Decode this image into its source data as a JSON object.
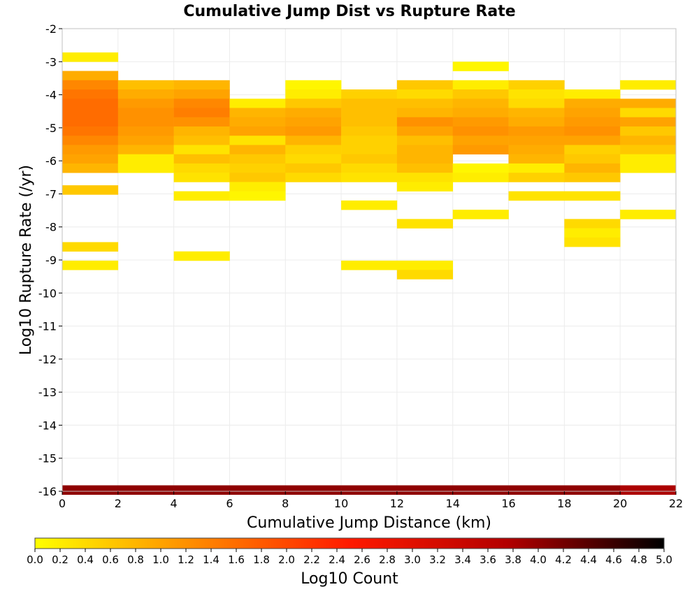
{
  "chart_data": {
    "type": "heatmap",
    "title": "Cumulative Jump Dist vs Rupture Rate",
    "xlabel": "Cumulative Jump Distance (km)",
    "ylabel": "Log10 Rupture Rate (/yr)",
    "xlim": [
      0,
      22
    ],
    "ylim": [
      -16,
      -2
    ],
    "x_ticks": [
      0,
      2,
      4,
      6,
      8,
      10,
      12,
      14,
      16,
      18,
      20,
      22
    ],
    "y_ticks": [
      -2,
      -3,
      -4,
      -5,
      -6,
      -7,
      -8,
      -9,
      -10,
      -11,
      -12,
      -13,
      -14,
      -15,
      -16
    ],
    "x_bin_width": 2,
    "y_bin_height": 0.28,
    "grid": true,
    "colorscale": {
      "label": "Log10 Count",
      "min": 0.0,
      "max": 5.0,
      "ticks": [
        "0.0",
        "0.2",
        "0.4",
        "0.6",
        "0.8",
        "1.0",
        "1.2",
        "1.4",
        "1.6",
        "1.8",
        "2.0",
        "2.2",
        "2.4",
        "2.6",
        "2.8",
        "3.0",
        "3.2",
        "3.4",
        "3.6",
        "3.8",
        "4.0",
        "4.2",
        "4.4",
        "4.6",
        "4.8",
        "5.0"
      ],
      "colors": [
        "#ffff00",
        "#ff8c00",
        "#ff1a00",
        "#b30000",
        "#000000"
      ]
    },
    "cells": [
      [
        1,
        -2.86,
        0.2
      ],
      [
        1,
        -3.42,
        0.9
      ],
      [
        1,
        -3.7,
        1.3
      ],
      [
        1,
        -3.98,
        1.5
      ],
      [
        1,
        -4.26,
        1.6
      ],
      [
        1,
        -4.54,
        1.6
      ],
      [
        1,
        -4.82,
        1.6
      ],
      [
        1,
        -5.1,
        1.5
      ],
      [
        1,
        -5.38,
        1.3
      ],
      [
        1,
        -5.66,
        1.1
      ],
      [
        1,
        -5.94,
        1.0
      ],
      [
        1,
        -6.22,
        0.8
      ],
      [
        1,
        -6.88,
        0.6
      ],
      [
        1,
        -8.6,
        0.4
      ],
      [
        1,
        -9.16,
        0.2
      ],
      [
        1,
        -15.96,
        4.0
      ],
      [
        3,
        -3.7,
        0.7
      ],
      [
        3,
        -3.98,
        0.9
      ],
      [
        3,
        -4.26,
        1.1
      ],
      [
        3,
        -4.54,
        1.2
      ],
      [
        3,
        -4.82,
        1.2
      ],
      [
        3,
        -5.1,
        1.1
      ],
      [
        3,
        -5.38,
        1.0
      ],
      [
        3,
        -5.66,
        0.8
      ],
      [
        3,
        -5.94,
        0.2
      ],
      [
        3,
        -6.22,
        0.2
      ],
      [
        3,
        -15.96,
        4.0
      ],
      [
        5,
        -3.7,
        0.8
      ],
      [
        5,
        -3.98,
        1.0
      ],
      [
        5,
        -4.26,
        1.3
      ],
      [
        5,
        -4.54,
        1.4
      ],
      [
        5,
        -4.82,
        1.2
      ],
      [
        5,
        -5.1,
        0.8
      ],
      [
        5,
        -5.38,
        0.7
      ],
      [
        5,
        -5.66,
        0.3
      ],
      [
        5,
        -5.94,
        0.7
      ],
      [
        5,
        -6.22,
        0.4
      ],
      [
        5,
        -6.5,
        0.3
      ],
      [
        5,
        -7.06,
        0.2
      ],
      [
        5,
        -8.88,
        0.2
      ],
      [
        5,
        -15.96,
        4.0
      ],
      [
        7,
        -4.26,
        0.2
      ],
      [
        7,
        -4.54,
        0.8
      ],
      [
        7,
        -4.82,
        0.9
      ],
      [
        7,
        -5.1,
        1.0
      ],
      [
        7,
        -5.38,
        0.3
      ],
      [
        7,
        -5.66,
        0.8
      ],
      [
        7,
        -5.94,
        0.6
      ],
      [
        7,
        -6.22,
        0.5
      ],
      [
        7,
        -6.5,
        0.6
      ],
      [
        7,
        -6.78,
        0.2
      ],
      [
        7,
        -7.06,
        0.1
      ],
      [
        7,
        -15.96,
        4.0
      ],
      [
        9,
        -3.7,
        0.1
      ],
      [
        9,
        -3.98,
        0.2
      ],
      [
        9,
        -4.26,
        0.6
      ],
      [
        9,
        -4.54,
        0.9
      ],
      [
        9,
        -4.82,
        1.0
      ],
      [
        9,
        -5.1,
        1.1
      ],
      [
        9,
        -5.38,
        0.8
      ],
      [
        9,
        -5.66,
        0.5
      ],
      [
        9,
        -5.94,
        0.4
      ],
      [
        9,
        -6.22,
        0.6
      ],
      [
        9,
        -6.5,
        0.4
      ],
      [
        9,
        -15.96,
        4.0
      ],
      [
        11,
        -3.98,
        0.5
      ],
      [
        11,
        -4.26,
        0.7
      ],
      [
        11,
        -4.54,
        0.7
      ],
      [
        11,
        -4.82,
        0.7
      ],
      [
        11,
        -5.1,
        0.6
      ],
      [
        11,
        -5.38,
        0.5
      ],
      [
        11,
        -5.66,
        0.5
      ],
      [
        11,
        -5.94,
        0.6
      ],
      [
        11,
        -6.22,
        0.4
      ],
      [
        11,
        -6.5,
        0.3
      ],
      [
        11,
        -7.34,
        0.2
      ],
      [
        11,
        -9.16,
        0.2
      ],
      [
        11,
        -15.96,
        4.0
      ],
      [
        13,
        -3.7,
        0.6
      ],
      [
        13,
        -3.98,
        0.4
      ],
      [
        13,
        -4.26,
        0.7
      ],
      [
        13,
        -4.54,
        0.8
      ],
      [
        13,
        -4.82,
        1.2
      ],
      [
        13,
        -5.1,
        1.0
      ],
      [
        13,
        -5.38,
        0.7
      ],
      [
        13,
        -5.66,
        0.8
      ],
      [
        13,
        -5.94,
        0.8
      ],
      [
        13,
        -6.22,
        0.7
      ],
      [
        13,
        -6.5,
        0.3
      ],
      [
        13,
        -6.78,
        0.2
      ],
      [
        13,
        -7.9,
        0.3
      ],
      [
        13,
        -9.16,
        0.2
      ],
      [
        13,
        -9.44,
        0.4
      ],
      [
        13,
        -15.96,
        4.0
      ],
      [
        15,
        -3.14,
        0.1
      ],
      [
        15,
        -3.7,
        0.2
      ],
      [
        15,
        -3.98,
        0.6
      ],
      [
        15,
        -4.26,
        0.8
      ],
      [
        15,
        -4.54,
        0.9
      ],
      [
        15,
        -4.82,
        1.1
      ],
      [
        15,
        -5.1,
        1.2
      ],
      [
        15,
        -5.38,
        1.0
      ],
      [
        15,
        -5.66,
        1.1
      ],
      [
        15,
        -6.22,
        0.1
      ],
      [
        15,
        -6.5,
        0.2
      ],
      [
        15,
        -7.62,
        0.2
      ],
      [
        15,
        -15.96,
        4.0
      ],
      [
        17,
        -3.7,
        0.5
      ],
      [
        17,
        -3.98,
        0.3
      ],
      [
        17,
        -4.26,
        0.4
      ],
      [
        17,
        -4.54,
        0.8
      ],
      [
        17,
        -4.82,
        0.9
      ],
      [
        17,
        -5.1,
        1.1
      ],
      [
        17,
        -5.38,
        1.0
      ],
      [
        17,
        -5.66,
        0.9
      ],
      [
        17,
        -5.94,
        0.8
      ],
      [
        17,
        -6.22,
        0.2
      ],
      [
        17,
        -6.5,
        0.5
      ],
      [
        17,
        -7.06,
        0.3
      ],
      [
        17,
        -15.96,
        4.0
      ],
      [
        19,
        -3.98,
        0.2
      ],
      [
        19,
        -4.26,
        0.9
      ],
      [
        19,
        -4.54,
        1.0
      ],
      [
        19,
        -4.82,
        1.1
      ],
      [
        19,
        -5.1,
        1.2
      ],
      [
        19,
        -5.38,
        1.0
      ],
      [
        19,
        -5.66,
        0.5
      ],
      [
        19,
        -5.94,
        0.6
      ],
      [
        19,
        -6.22,
        0.8
      ],
      [
        19,
        -6.5,
        0.6
      ],
      [
        19,
        -7.06,
        0.3
      ],
      [
        19,
        -7.9,
        0.4
      ],
      [
        19,
        -8.18,
        0.2
      ],
      [
        19,
        -8.46,
        0.3
      ],
      [
        19,
        -15.96,
        4.0
      ],
      [
        21,
        -3.7,
        0.2
      ],
      [
        21,
        -4.26,
        0.9
      ],
      [
        21,
        -4.54,
        0.4
      ],
      [
        21,
        -4.82,
        1.0
      ],
      [
        21,
        -5.1,
        0.6
      ],
      [
        21,
        -5.38,
        0.8
      ],
      [
        21,
        -5.66,
        0.6
      ],
      [
        21,
        -5.94,
        0.2
      ],
      [
        21,
        -6.22,
        0.2
      ],
      [
        21,
        -7.62,
        0.2
      ],
      [
        21,
        -15.96,
        3.8
      ]
    ]
  }
}
